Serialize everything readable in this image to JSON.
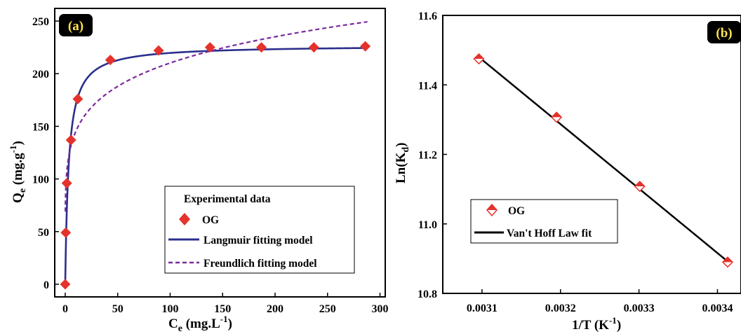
{
  "chart_data": [
    {
      "type": "scatter",
      "panel_label": "(a)",
      "xlabel_base": "C",
      "xlabel_sub": "e",
      "xlabel_unit": "(mg.L",
      "xlabel_sup": "-1",
      "xlabel_close": ")",
      "ylabel_base": "Q",
      "ylabel_sub": "e",
      "ylabel_unit": "(mg.g",
      "ylabel_sup": "-1",
      "ylabel_close": ")",
      "xlim": [
        -10,
        305
      ],
      "ylim": [
        -12,
        262
      ],
      "xticks": [
        0,
        50,
        100,
        150,
        200,
        250,
        300
      ],
      "yticks": [
        0,
        50,
        100,
        150,
        200,
        250
      ],
      "legend_title": "Experimental data",
      "legend_position": "bottom-right",
      "series": [
        {
          "name": "OG",
          "kind": "points",
          "color": "#e5322c",
          "x": [
            0,
            0.5,
            1.5,
            5.5,
            12,
            43,
            89,
            138,
            187,
            237,
            286
          ],
          "y": [
            0,
            49,
            96,
            137,
            176,
            213,
            222,
            225,
            225,
            225,
            226
          ]
        },
        {
          "name": "Langmuir fitting model",
          "kind": "curve",
          "color": "#2b2f8c",
          "model": "langmuir",
          "qmax": 227,
          "KL": 0.3,
          "x_range": [
            0,
            288
          ]
        },
        {
          "name": "Freundlich fitting model",
          "kind": "curve",
          "color": "#7a2b9c",
          "model": "freundlich",
          "KF": 100,
          "n": 6.2,
          "x_range": [
            0.1,
            288
          ]
        }
      ]
    },
    {
      "type": "scatter",
      "panel_label": "(b)",
      "xlabel": "1/T (K",
      "xlabel_sup": "-1",
      "xlabel_close": ")",
      "ylabel_base": "Ln(K",
      "ylabel_sub": "d",
      "ylabel_close": ")",
      "xlim": [
        0.00305,
        0.00343
      ],
      "ylim": [
        10.8,
        11.6
      ],
      "xticks": [
        "0.0031",
        "0.0032",
        "0.0033",
        "0.0034"
      ],
      "yticks": [
        "10.8",
        "11.0",
        "11.2",
        "11.4",
        "11.6"
      ],
      "legend_position": "bottom-left",
      "series": [
        {
          "name": "OG",
          "kind": "points",
          "color": "#e5322c",
          "x": [
            0.003096,
            0.003195,
            0.003301,
            0.003413
          ],
          "y": [
            11.475,
            11.307,
            11.108,
            10.89
          ]
        },
        {
          "name": "Van't Hoff Law fit",
          "kind": "line",
          "color": "#000000",
          "x": [
            0.003096,
            0.003413
          ],
          "y": [
            11.48,
            10.892
          ]
        }
      ]
    }
  ]
}
